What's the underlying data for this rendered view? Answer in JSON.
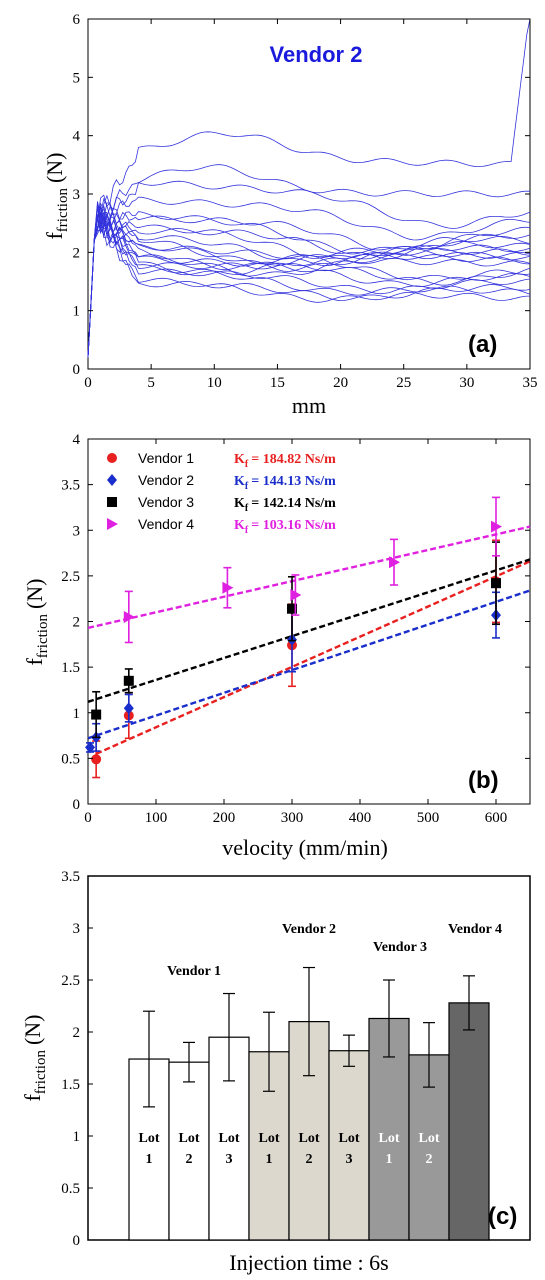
{
  "chart_data": [
    {
      "type": "line",
      "panel_label": "(a)",
      "title": "Vendor 2",
      "title_color": "#1a1adc",
      "xlabel": "mm",
      "ylabel_main": "f",
      "ylabel_sub": "friction",
      "ylabel_unit": "(N)",
      "xlim": [
        0,
        35
      ],
      "ylim": [
        0,
        6
      ],
      "xticks": [
        "0",
        "5",
        "10",
        "15",
        "20",
        "25",
        "30",
        "35"
      ],
      "yticks": [
        "0",
        "1",
        "2",
        "3",
        "4",
        "5",
        "6"
      ],
      "line_color": "#3333dd",
      "series_end_values": [
        1.2,
        1.3,
        1.4,
        1.5,
        1.6,
        1.7,
        1.75,
        1.8,
        1.85,
        1.9,
        1.95,
        2.0,
        2.05,
        2.1,
        2.2,
        2.3,
        2.4,
        2.6,
        2.8,
        3.0,
        3.5
      ]
    },
    {
      "type": "scatter",
      "panel_label": "(b)",
      "xlabel": "velocity (mm/min)",
      "ylabel_main": "f",
      "ylabel_sub": "friction",
      "ylabel_unit": "(N)",
      "xlim": [
        0,
        650
      ],
      "ylim": [
        0,
        4
      ],
      "xticks": [
        "0",
        "100",
        "200",
        "300",
        "400",
        "500",
        "600"
      ],
      "yticks": [
        "0",
        "0.5",
        "1",
        "1.5",
        "2",
        "2.5",
        "3",
        "3.5",
        "4"
      ],
      "series": [
        {
          "name": "Vendor 1",
          "k_main": "K",
          "k_sub": "f",
          "k_value": "= 184.82 Ns/m",
          "color": "#e82020",
          "marker": "circle",
          "points": [
            {
              "x": 12,
              "y": 0.49,
              "err": 0.2
            },
            {
              "x": 60,
              "y": 0.97,
              "err": 0.25
            },
            {
              "x": 300,
              "y": 1.74,
              "err": 0.45
            },
            {
              "x": 600,
              "y": 2.44,
              "err": 0.45
            }
          ],
          "fit": [
            [
              12,
              0.55
            ],
            [
              650,
              2.66
            ]
          ]
        },
        {
          "name": "Vendor 2",
          "k_main": "K",
          "k_sub": "f",
          "k_value": "= 144.13 Ns/m",
          "color": "#1a2ecc",
          "marker": "diamond",
          "points": [
            {
              "x": 3,
              "y": 0.62,
              "err": 0.05
            },
            {
              "x": 12,
              "y": 0.73,
              "err": 0.15
            },
            {
              "x": 60,
              "y": 1.05,
              "err": 0.15
            },
            {
              "x": 300,
              "y": 1.8,
              "err": 0.35
            },
            {
              "x": 600,
              "y": 2.07,
              "err": 0.25
            }
          ],
          "fit": [
            [
              0,
              0.72
            ],
            [
              650,
              2.34
            ]
          ]
        },
        {
          "name": "Vendor 3",
          "k_main": "K",
          "k_sub": "f",
          "k_value": "= 142.14 Ns/m",
          "color": "#000000",
          "marker": "square",
          "points": [
            {
              "x": 12,
              "y": 0.98,
              "err": 0.25
            },
            {
              "x": 60,
              "y": 1.35,
              "err": 0.13
            },
            {
              "x": 300,
              "y": 2.14,
              "err": 0.35
            },
            {
              "x": 600,
              "y": 2.42,
              "err": 0.45
            }
          ],
          "fit": [
            [
              0,
              1.12
            ],
            [
              650,
              2.68
            ]
          ]
        },
        {
          "name": "Vendor 4",
          "k_main": "K",
          "k_sub": "f",
          "k_value": "= 103.16 Ns/m",
          "color": "#e020e0",
          "marker": "triangle-right",
          "points": [
            {
              "x": 60,
              "y": 2.05,
              "err": 0.28
            },
            {
              "x": 205,
              "y": 2.37,
              "err": 0.22
            },
            {
              "x": 305,
              "y": 2.29,
              "err": 0.22
            },
            {
              "x": 450,
              "y": 2.65,
              "err": 0.25
            },
            {
              "x": 600,
              "y": 3.04,
              "err": 0.32
            }
          ],
          "fit": [
            [
              0,
              1.93
            ],
            [
              650,
              3.04
            ]
          ]
        }
      ]
    },
    {
      "type": "bar",
      "panel_label": "(c)",
      "xlabel": "Injection time : 6s",
      "ylabel_main": "f",
      "ylabel_sub": "friction",
      "ylabel_unit": "(N)",
      "ylim": [
        0,
        3.5
      ],
      "yticks": [
        "0",
        "0.5",
        "1",
        "1.5",
        "2",
        "2.5",
        "3",
        "3.5"
      ],
      "groups": [
        {
          "name": "Vendor 1",
          "color": "#ffffff",
          "lot_text_color": "#000000"
        },
        {
          "name": "Vendor 2",
          "color": "#ddd8ce",
          "lot_text_color": "#000000"
        },
        {
          "name": "Vendor 3",
          "color": "#999999",
          "lot_text_color": "#ffffff"
        },
        {
          "name": "Vendor 4",
          "color": "#666666",
          "lot_text_color": "#ffffff"
        }
      ],
      "bars": [
        {
          "group": 0,
          "lot": "Lot",
          "num": "1",
          "value": 1.74,
          "err": 0.46
        },
        {
          "group": 0,
          "lot": "Lot",
          "num": "2",
          "value": 1.71,
          "err": 0.19
        },
        {
          "group": 0,
          "lot": "Lot",
          "num": "3",
          "value": 1.95,
          "err": 0.42
        },
        {
          "group": 1,
          "lot": "Lot",
          "num": "1",
          "value": 1.81,
          "err": 0.38
        },
        {
          "group": 1,
          "lot": "Lot",
          "num": "2",
          "value": 2.1,
          "err": 0.52
        },
        {
          "group": 1,
          "lot": "Lot",
          "num": "3",
          "value": 1.82,
          "err": 0.15
        },
        {
          "group": 2,
          "lot": "Lot",
          "num": "1",
          "value": 2.13,
          "err": 0.37
        },
        {
          "group": 2,
          "lot": "Lot",
          "num": "2",
          "value": 1.78,
          "err": 0.31
        },
        {
          "group": 3,
          "lot": "",
          "num": "",
          "value": 2.28,
          "err": 0.26
        }
      ]
    }
  ]
}
